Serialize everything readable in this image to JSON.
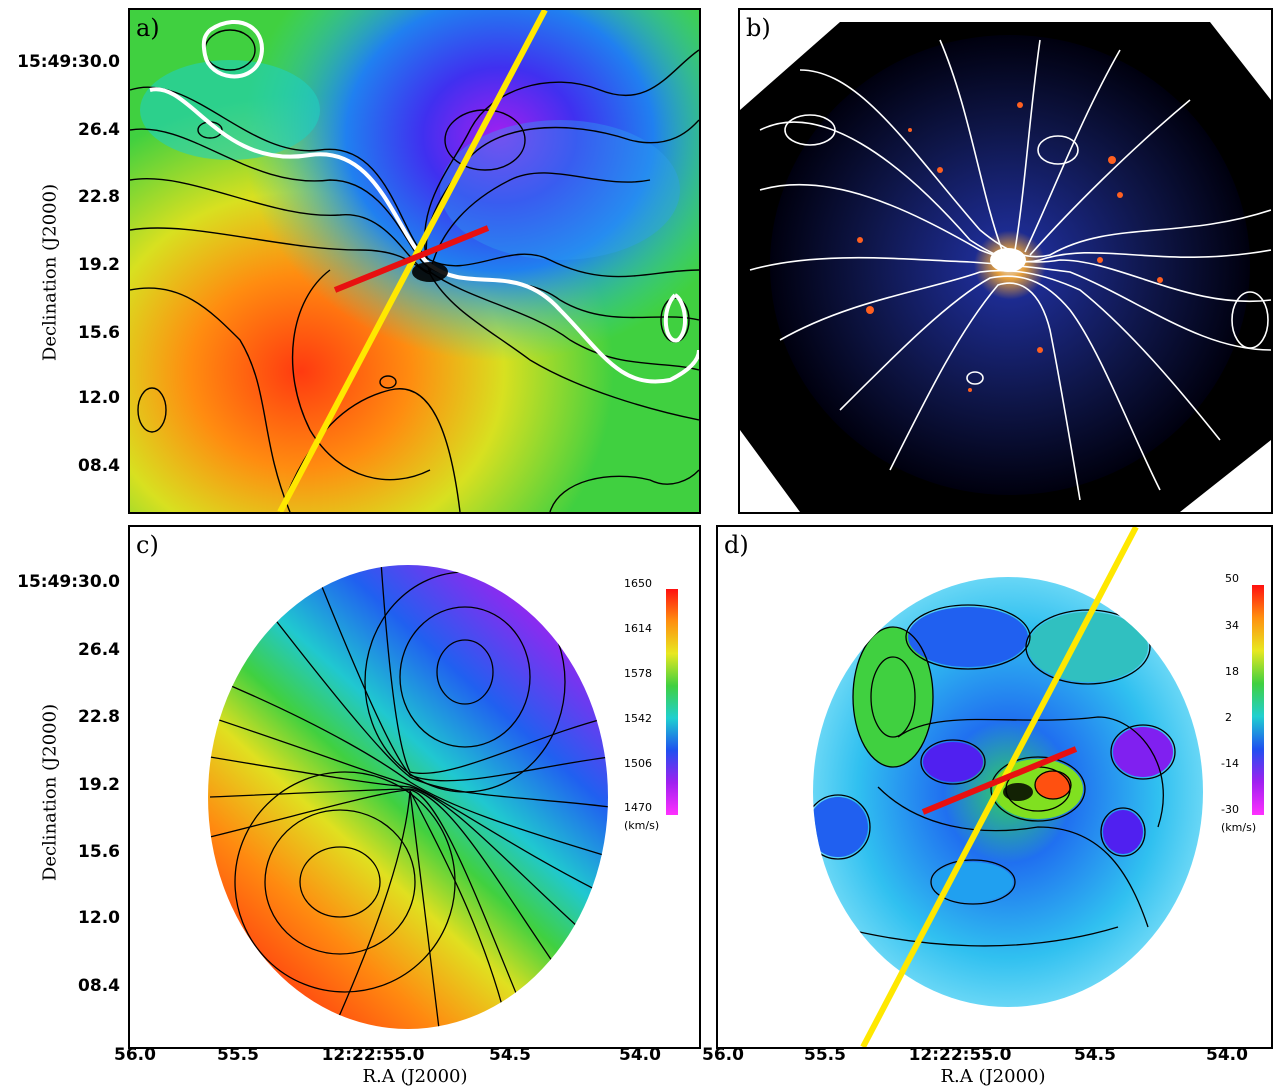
{
  "panels": [
    {
      "label": "a)"
    },
    {
      "label": "b)"
    },
    {
      "label": "c)"
    },
    {
      "label": "d)"
    }
  ],
  "axes": {
    "ylabel": "Declination (J2000)",
    "xlabel": "R.A (J2000)",
    "yticks": [
      "15:49:30.0",
      "26.4",
      "22.8",
      "19.2",
      "15.6",
      "12.0",
      "08.4"
    ],
    "xticks": [
      "56.0",
      "55.5",
      "12:22:55.0",
      "54.5",
      "54.0"
    ]
  },
  "colorbar_c": {
    "ticks": [
      "1650",
      "1614",
      "1578",
      "1542",
      "1506",
      "1470"
    ],
    "unit": "(km/s)"
  },
  "colorbar_d": {
    "ticks": [
      "50",
      "34",
      "18",
      "2",
      "-14",
      "-30"
    ],
    "unit": "(km/s)"
  },
  "colors": {
    "major_axis_line": "#ffe800",
    "kinematic_line": "#e81010",
    "contour_dark": "#000000",
    "contour_light": "#ffffff"
  }
}
